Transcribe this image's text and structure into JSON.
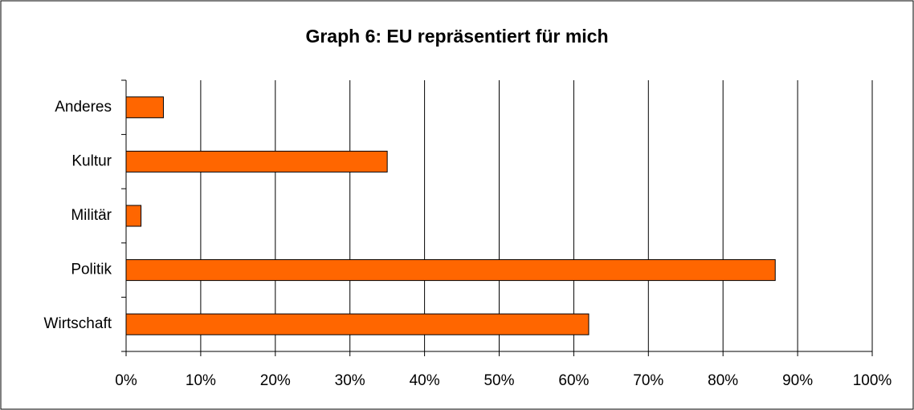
{
  "chart_data": {
    "type": "hbar",
    "title": "Graph 6: EU repräsentiert für mich",
    "categories": [
      "Anderes",
      "Kultur",
      "Militär",
      "Politik",
      "Wirtschaft"
    ],
    "values": [
      5,
      35,
      2,
      87,
      62
    ],
    "color": "#ff6600",
    "xlim": [
      0,
      100
    ],
    "xticks": [
      {
        "value": 0,
        "label": "0%"
      },
      {
        "value": 10,
        "label": "10%"
      },
      {
        "value": 20,
        "label": "20%"
      },
      {
        "value": 30,
        "label": "30%"
      },
      {
        "value": 40,
        "label": "40%"
      },
      {
        "value": 50,
        "label": "50%"
      },
      {
        "value": 60,
        "label": "60%"
      },
      {
        "value": 70,
        "label": "70%"
      },
      {
        "value": 80,
        "label": "80%"
      },
      {
        "value": 90,
        "label": "90%"
      },
      {
        "value": 100,
        "label": "100%"
      }
    ],
    "grid": true
  }
}
